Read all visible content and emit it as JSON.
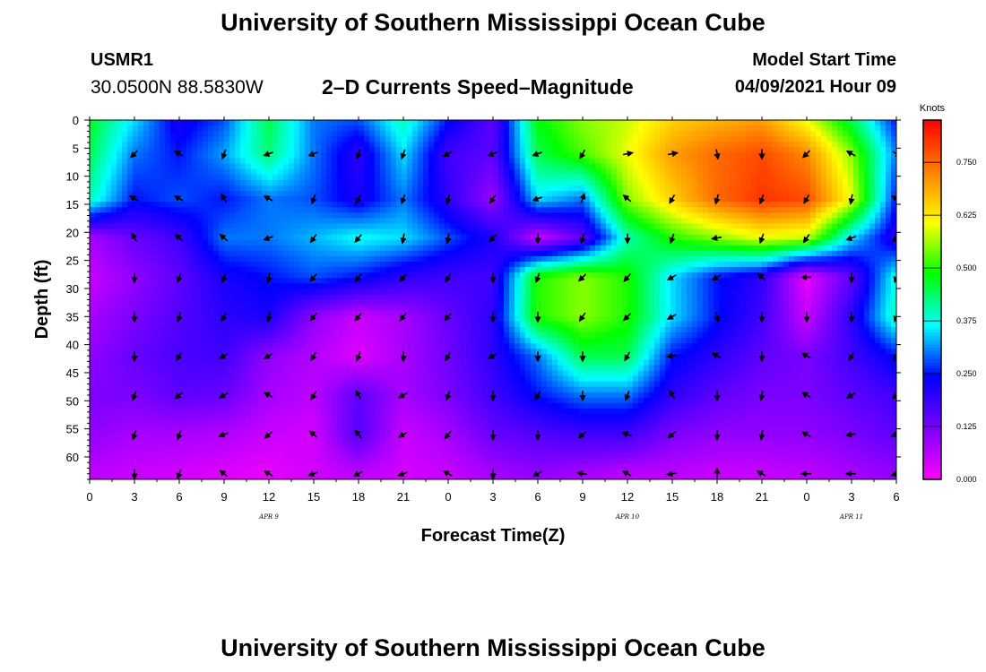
{
  "header": {
    "title": "University of Southern Mississippi Ocean Cube",
    "station": "USMR1",
    "coords": "30.0500N  88.5830W",
    "subtitle": "2–D Currents Speed–Magnitude",
    "model_start_label": "Model Start Time",
    "model_start_value": "04/09/2021 Hour 09"
  },
  "footer": {
    "title": "University of Southern Mississippi Ocean Cube"
  },
  "chart_data": {
    "type": "heatmap",
    "xlabel": "Forecast Time(Z)",
    "ylabel": "Depth (ft)",
    "x_tick_labels": [
      "0",
      "3",
      "6",
      "9",
      "12",
      "15",
      "18",
      "21",
      "0",
      "3",
      "6",
      "9",
      "12",
      "15",
      "18",
      "21",
      "0",
      "3",
      "6"
    ],
    "x_date_labels": [
      {
        "text": "APR 9",
        "tick_index": 4
      },
      {
        "text": "APR 10",
        "tick_index": 12
      },
      {
        "text": "APR 11",
        "tick_index": 17
      }
    ],
    "y_ticks": [
      0,
      5,
      10,
      15,
      20,
      25,
      30,
      35,
      40,
      45,
      50,
      55,
      60
    ],
    "ylim": [
      0,
      64
    ],
    "y_inverted": true,
    "colorbar": {
      "unit": "Knots",
      "ticks": [
        "0.000",
        "0.125",
        "0.250",
        "0.375",
        "0.500",
        "0.625",
        "0.750"
      ],
      "range": [
        0,
        0.85
      ],
      "colors": [
        "#ff00ff",
        "#7a00ff",
        "#0000ff",
        "#00ffff",
        "#00ff00",
        "#ffff00",
        "#ff8000",
        "#ff0000"
      ]
    },
    "grid_x_index": [
      0,
      1,
      2,
      3,
      4,
      5,
      6,
      7,
      8,
      9,
      10,
      11,
      12,
      13,
      14,
      15,
      16,
      17,
      18
    ],
    "grid_depth": [
      0,
      6,
      14,
      21,
      28,
      35,
      42,
      49,
      56,
      63
    ],
    "speed_knots": [
      [
        0.47,
        0.35,
        0.22,
        0.28,
        0.45,
        0.3,
        0.28,
        0.4,
        0.25,
        0.15,
        0.48,
        0.55,
        0.58,
        0.65,
        0.68,
        0.7,
        0.6,
        0.45,
        0.25
      ],
      [
        0.45,
        0.3,
        0.25,
        0.32,
        0.43,
        0.3,
        0.2,
        0.35,
        0.18,
        0.15,
        0.45,
        0.52,
        0.6,
        0.7,
        0.75,
        0.78,
        0.72,
        0.55,
        0.3
      ],
      [
        0.4,
        0.25,
        0.28,
        0.25,
        0.3,
        0.28,
        0.22,
        0.3,
        0.2,
        0.09,
        0.35,
        0.3,
        0.55,
        0.65,
        0.75,
        0.8,
        0.78,
        0.6,
        0.25
      ],
      [
        0.08,
        0.14,
        0.18,
        0.3,
        0.3,
        0.33,
        0.37,
        0.35,
        0.28,
        0.22,
        0.05,
        0.15,
        0.4,
        0.5,
        0.55,
        0.6,
        0.58,
        0.35,
        0.2
      ],
      [
        0.05,
        0.1,
        0.15,
        0.22,
        0.25,
        0.28,
        0.25,
        0.2,
        0.18,
        0.18,
        0.5,
        0.55,
        0.5,
        0.35,
        0.25,
        0.2,
        0.02,
        0.15,
        0.38
      ],
      [
        0.08,
        0.12,
        0.16,
        0.2,
        0.22,
        0.1,
        0.05,
        0.08,
        0.14,
        0.2,
        0.5,
        0.55,
        0.5,
        0.35,
        0.25,
        0.18,
        0.05,
        0.2,
        0.4
      ],
      [
        0.1,
        0.14,
        0.17,
        0.18,
        0.1,
        0.07,
        0.03,
        0.08,
        0.13,
        0.2,
        0.3,
        0.45,
        0.45,
        0.25,
        0.2,
        0.15,
        0.12,
        0.18,
        0.25
      ],
      [
        0.12,
        0.12,
        0.15,
        0.14,
        0.08,
        0.06,
        0.15,
        0.08,
        0.12,
        0.18,
        0.25,
        0.3,
        0.3,
        0.2,
        0.15,
        0.12,
        0.12,
        0.15,
        0.18
      ],
      [
        0.1,
        0.08,
        0.08,
        0.07,
        0.05,
        0.04,
        0.16,
        0.05,
        0.08,
        0.14,
        0.16,
        0.18,
        0.18,
        0.12,
        0.1,
        0.1,
        0.1,
        0.12,
        0.15
      ],
      [
        0.06,
        0.05,
        0.04,
        0.03,
        0.02,
        0.04,
        0.06,
        0.04,
        0.05,
        0.08,
        0.1,
        0.08,
        0.06,
        0.06,
        0.05,
        0.05,
        0.06,
        0.08,
        0.1
      ]
    ],
    "arrow_x_index": [
      1,
      2,
      3,
      4,
      5,
      6,
      7,
      8,
      9,
      10,
      11,
      12,
      13,
      14,
      15,
      16,
      17,
      18
    ],
    "arrow_depth": [
      6,
      14,
      21,
      28,
      35,
      42,
      49,
      56,
      63
    ],
    "arrow_direction_deg": [
      [
        225,
        300,
        200,
        250,
        250,
        200,
        200,
        240,
        250,
        250,
        210,
        80,
        80,
        170,
        180,
        225,
        300,
        120
      ],
      [
        300,
        300,
        330,
        300,
        200,
        210,
        200,
        195,
        215,
        250,
        20,
        310,
        210,
        195,
        200,
        210,
        190,
        300
      ],
      [
        330,
        310,
        310,
        250,
        215,
        220,
        190,
        190,
        225,
        180,
        195,
        180,
        200,
        260,
        200,
        215,
        250,
        230
      ],
      [
        180,
        200,
        200,
        190,
        220,
        220,
        220,
        210,
        180,
        200,
        225,
        220,
        240,
        240,
        310,
        270,
        180,
        200
      ],
      [
        180,
        195,
        210,
        190,
        220,
        220,
        220,
        220,
        180,
        180,
        215,
        225,
        240,
        170,
        180,
        180,
        180,
        200
      ],
      [
        180,
        210,
        240,
        240,
        210,
        200,
        180,
        210,
        240,
        180,
        180,
        210,
        260,
        300,
        180,
        300,
        210,
        210
      ],
      [
        200,
        230,
        240,
        300,
        210,
        330,
        240,
        200,
        180,
        210,
        180,
        200,
        330,
        180,
        190,
        300,
        240,
        230
      ],
      [
        200,
        200,
        250,
        230,
        310,
        320,
        240,
        220,
        180,
        180,
        230,
        290,
        230,
        180,
        190,
        300,
        260,
        250
      ],
      [
        180,
        200,
        310,
        300,
        250,
        240,
        250,
        300,
        180,
        240,
        280,
        300,
        260,
        0,
        300,
        270,
        270,
        250
      ]
    ]
  }
}
